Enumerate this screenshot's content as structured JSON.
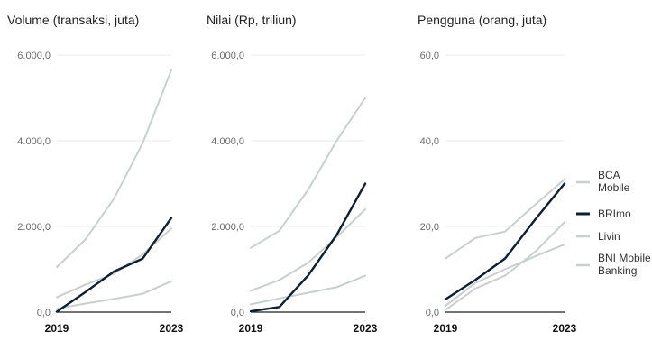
{
  "chart_data": [
    {
      "type": "line",
      "title": "Volume (transaksi, juta)",
      "x": [
        2019,
        2020,
        2021,
        2022,
        2023
      ],
      "x_tick_labels": [
        "2019",
        "2023"
      ],
      "ylim": [
        0,
        6000
      ],
      "y_tick_labels": [
        "0,0",
        "2.000,0",
        "4.000,0",
        "6.000,0"
      ],
      "grid": true,
      "series": [
        {
          "name": "BCA Mobile",
          "values": [
            1050,
            1700,
            2650,
            3950,
            5650
          ]
        },
        {
          "name": "BRImo",
          "values": [
            10,
            470,
            950,
            1250,
            2200
          ]
        },
        {
          "name": "Livin",
          "values": [
            350,
            640,
            900,
            1350,
            1950
          ]
        },
        {
          "name": "BNI Mobile Banking",
          "values": [
            80,
            200,
            310,
            430,
            720
          ]
        }
      ]
    },
    {
      "type": "line",
      "title": "Nilai (Rp, triliun)",
      "x": [
        2019,
        2020,
        2021,
        2022,
        2023
      ],
      "x_tick_labels": [
        "2019",
        "2023"
      ],
      "ylim": [
        0,
        6000
      ],
      "y_tick_labels": [
        "0,0",
        "2.000,0",
        "4.000,0",
        "6.000,0"
      ],
      "grid": true,
      "series": [
        {
          "name": "BCA Mobile",
          "values": [
            1500,
            1900,
            2850,
            4000,
            5000
          ]
        },
        {
          "name": "BRImo",
          "values": [
            20,
            120,
            850,
            1800,
            3000
          ]
        },
        {
          "name": "Livin",
          "values": [
            500,
            750,
            1150,
            1750,
            2400
          ]
        },
        {
          "name": "BNI Mobile Banking",
          "values": [
            180,
            320,
            450,
            580,
            850
          ]
        }
      ]
    },
    {
      "type": "line",
      "title": "Pengguna (orang, juta)",
      "x": [
        2019,
        2020,
        2021,
        2022,
        2023
      ],
      "x_tick_labels": [
        "2019",
        "2023"
      ],
      "ylim": [
        0,
        60
      ],
      "y_tick_labels": [
        "0,0",
        "20,0",
        "40,0",
        "60,0"
      ],
      "grid": true,
      "series": [
        {
          "name": "BCA Mobile",
          "values": [
            12.5,
            17.3,
            18.8,
            25,
            31
          ]
        },
        {
          "name": "BRImo",
          "values": [
            3,
            7.5,
            12.5,
            21.5,
            30
          ]
        },
        {
          "name": "Livin",
          "values": [
            0.5,
            5.5,
            8.5,
            14,
            21
          ]
        },
        {
          "name": "BNI Mobile Banking",
          "values": [
            1.5,
            6.8,
            10,
            13,
            15.8
          ]
        }
      ]
    }
  ],
  "legend": {
    "placement": "right",
    "items": [
      {
        "label_lines": [
          "BCA",
          "Mobile"
        ],
        "color": "#c9cfcf"
      },
      {
        "label_lines": [
          "BRImo"
        ],
        "color": "#0f1f33"
      },
      {
        "label_lines": [
          "Livin"
        ],
        "color": "#c9cfcf"
      },
      {
        "label_lines": [
          "BNI Mobile",
          "Banking"
        ],
        "color": "#c9cfcf"
      }
    ]
  },
  "colors": {
    "BCA Mobile": "#c9cfcf",
    "BRImo": "#0f1f33",
    "Livin": "#c9cfcf",
    "BNI Mobile Banking": "#c9cfcf"
  }
}
